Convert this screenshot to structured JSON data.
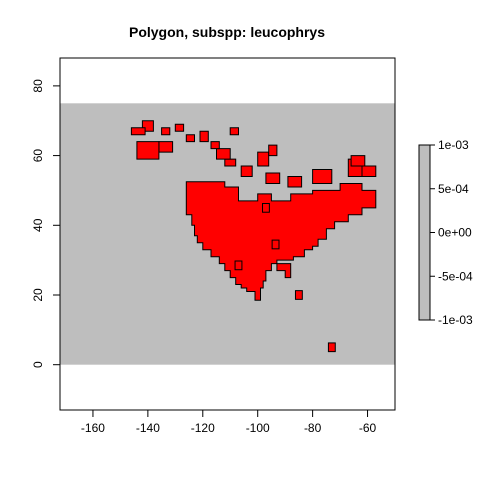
{
  "chart_data": {
    "type": "raster-map",
    "title": "Polygon, subspp: leucophrys",
    "xlabel": "",
    "ylabel": "",
    "xlim": [
      -172,
      -50
    ],
    "ylim": [
      -13,
      88
    ],
    "x_ticks": [
      -160,
      -140,
      -120,
      -100,
      -80,
      -60
    ],
    "y_ticks": [
      0,
      20,
      40,
      60,
      80
    ],
    "x_tick_labels": [
      "-160",
      "-140",
      "-120",
      "-100",
      "-80",
      "-60"
    ],
    "y_tick_labels": [
      "0",
      "20",
      "40",
      "60",
      "80"
    ],
    "background_extent": {
      "x": [
        -172,
        -50
      ],
      "y": [
        0,
        75
      ]
    },
    "colors": {
      "background": "#bebebe",
      "range": "#ff0000",
      "outline": "#000000"
    },
    "cell_size_deg": 2.5,
    "polygons": [
      [
        [
          -126,
          52.5
        ],
        [
          -112,
          52.5
        ],
        [
          -112,
          51
        ],
        [
          -107,
          51
        ],
        [
          -107,
          47
        ],
        [
          -100,
          47
        ],
        [
          -100,
          49
        ],
        [
          -95,
          49
        ],
        [
          -95,
          47
        ],
        [
          -88,
          47
        ],
        [
          -88,
          49
        ],
        [
          -80,
          49
        ],
        [
          -80,
          50
        ],
        [
          -70,
          50
        ],
        [
          -70,
          52
        ],
        [
          -62,
          52
        ],
        [
          -62,
          50
        ],
        [
          -57,
          50
        ],
        [
          -57,
          45
        ],
        [
          -62,
          45
        ],
        [
          -62,
          43
        ],
        [
          -67,
          43
        ],
        [
          -67,
          41
        ],
        [
          -72,
          41
        ],
        [
          -72,
          39
        ],
        [
          -75,
          39
        ],
        [
          -75,
          36
        ],
        [
          -78,
          36
        ],
        [
          -78,
          34
        ],
        [
          -80,
          34
        ],
        [
          -80,
          33
        ],
        [
          -83,
          33
        ],
        [
          -83,
          31
        ],
        [
          -87,
          31
        ],
        [
          -87,
          30
        ],
        [
          -93,
          30
        ],
        [
          -93,
          29
        ],
        [
          -95,
          29
        ],
        [
          -95,
          27
        ],
        [
          -97,
          27
        ],
        [
          -97,
          24
        ],
        [
          -98,
          24
        ],
        [
          -98,
          22
        ],
        [
          -99,
          22
        ],
        [
          -99,
          18.5
        ],
        [
          -101,
          18.5
        ],
        [
          -101,
          21
        ],
        [
          -104,
          21
        ],
        [
          -104,
          22
        ],
        [
          -106,
          22
        ],
        [
          -106,
          23
        ],
        [
          -108,
          23
        ],
        [
          -108,
          25
        ],
        [
          -110,
          25
        ],
        [
          -110,
          27
        ],
        [
          -112,
          27
        ],
        [
          -112,
          29
        ],
        [
          -114,
          29
        ],
        [
          -114,
          31
        ],
        [
          -117,
          31
        ],
        [
          -117,
          33
        ],
        [
          -120,
          33
        ],
        [
          -120,
          35
        ],
        [
          -122,
          35
        ],
        [
          -122,
          37
        ],
        [
          -123,
          37
        ],
        [
          -123,
          40
        ],
        [
          -124,
          40
        ],
        [
          -124,
          43
        ],
        [
          -126,
          43
        ]
      ],
      [
        [
          -93,
          29
        ],
        [
          -88,
          29
        ],
        [
          -88,
          25
        ],
        [
          -90,
          25
        ],
        [
          -90,
          27
        ],
        [
          -93,
          27
        ]
      ],
      [
        [
          -97,
          55
        ],
        [
          -92,
          55
        ],
        [
          -92,
          52
        ],
        [
          -97,
          52
        ]
      ],
      [
        [
          -106,
          57
        ],
        [
          -102,
          57
        ],
        [
          -102,
          54
        ],
        [
          -106,
          54
        ]
      ],
      [
        [
          -89,
          54
        ],
        [
          -84,
          54
        ],
        [
          -84,
          51
        ],
        [
          -89,
          51
        ]
      ],
      [
        [
          -80,
          56
        ],
        [
          -73,
          56
        ],
        [
          -73,
          52
        ],
        [
          -80,
          52
        ]
      ],
      [
        [
          -67,
          59
        ],
        [
          -62,
          59
        ],
        [
          -62,
          54
        ],
        [
          -67,
          54
        ]
      ],
      [
        [
          -62,
          57
        ],
        [
          -57,
          57
        ],
        [
          -57,
          54
        ],
        [
          -62,
          54
        ]
      ],
      [
        [
          -66,
          60
        ],
        [
          -61,
          60
        ],
        [
          -61,
          57
        ],
        [
          -66,
          57
        ]
      ],
      [
        [
          -100,
          61
        ],
        [
          -96,
          61
        ],
        [
          -96,
          57
        ],
        [
          -100,
          57
        ]
      ],
      [
        [
          -96,
          63
        ],
        [
          -93,
          63
        ],
        [
          -93,
          60
        ],
        [
          -96,
          60
        ]
      ],
      [
        [
          -112,
          59
        ],
        [
          -108,
          59
        ],
        [
          -108,
          57
        ],
        [
          -112,
          57
        ]
      ],
      [
        [
          -115,
          62
        ],
        [
          -110,
          62
        ],
        [
          -110,
          59
        ],
        [
          -115,
          59
        ]
      ],
      [
        [
          -117,
          64
        ],
        [
          -114,
          64
        ],
        [
          -114,
          62
        ],
        [
          -117,
          62
        ]
      ],
      [
        [
          -121,
          67
        ],
        [
          -118,
          67
        ],
        [
          -118,
          64
        ],
        [
          -121,
          64
        ]
      ],
      [
        [
          -126,
          66
        ],
        [
          -123,
          66
        ],
        [
          -123,
          64
        ],
        [
          -126,
          64
        ]
      ],
      [
        [
          -135,
          68
        ],
        [
          -132,
          68
        ],
        [
          -132,
          66
        ],
        [
          -135,
          66
        ]
      ],
      [
        [
          -136,
          64
        ],
        [
          -131,
          64
        ],
        [
          -131,
          61
        ],
        [
          -136,
          61
        ]
      ],
      [
        [
          -144,
          64
        ],
        [
          -136,
          64
        ],
        [
          -136,
          59
        ],
        [
          -144,
          59
        ]
      ],
      [
        [
          -142,
          70
        ],
        [
          -138,
          70
        ],
        [
          -138,
          67
        ],
        [
          -142,
          67
        ]
      ],
      [
        [
          -146,
          68
        ],
        [
          -141,
          68
        ],
        [
          -141,
          66
        ],
        [
          -146,
          66
        ]
      ],
      [
        [
          -130,
          69
        ],
        [
          -127,
          69
        ],
        [
          -127,
          67
        ],
        [
          -130,
          67
        ]
      ],
      [
        [
          -110,
          68
        ],
        [
          -107,
          68
        ],
        [
          -107,
          66
        ],
        [
          -110,
          66
        ]
      ]
    ],
    "point_cells": [
      [
        -107,
        28.5
      ],
      [
        -85,
        20
      ],
      [
        -73,
        5
      ],
      [
        -93.5,
        34.5
      ],
      [
        -97,
        45
      ]
    ]
  }
}
